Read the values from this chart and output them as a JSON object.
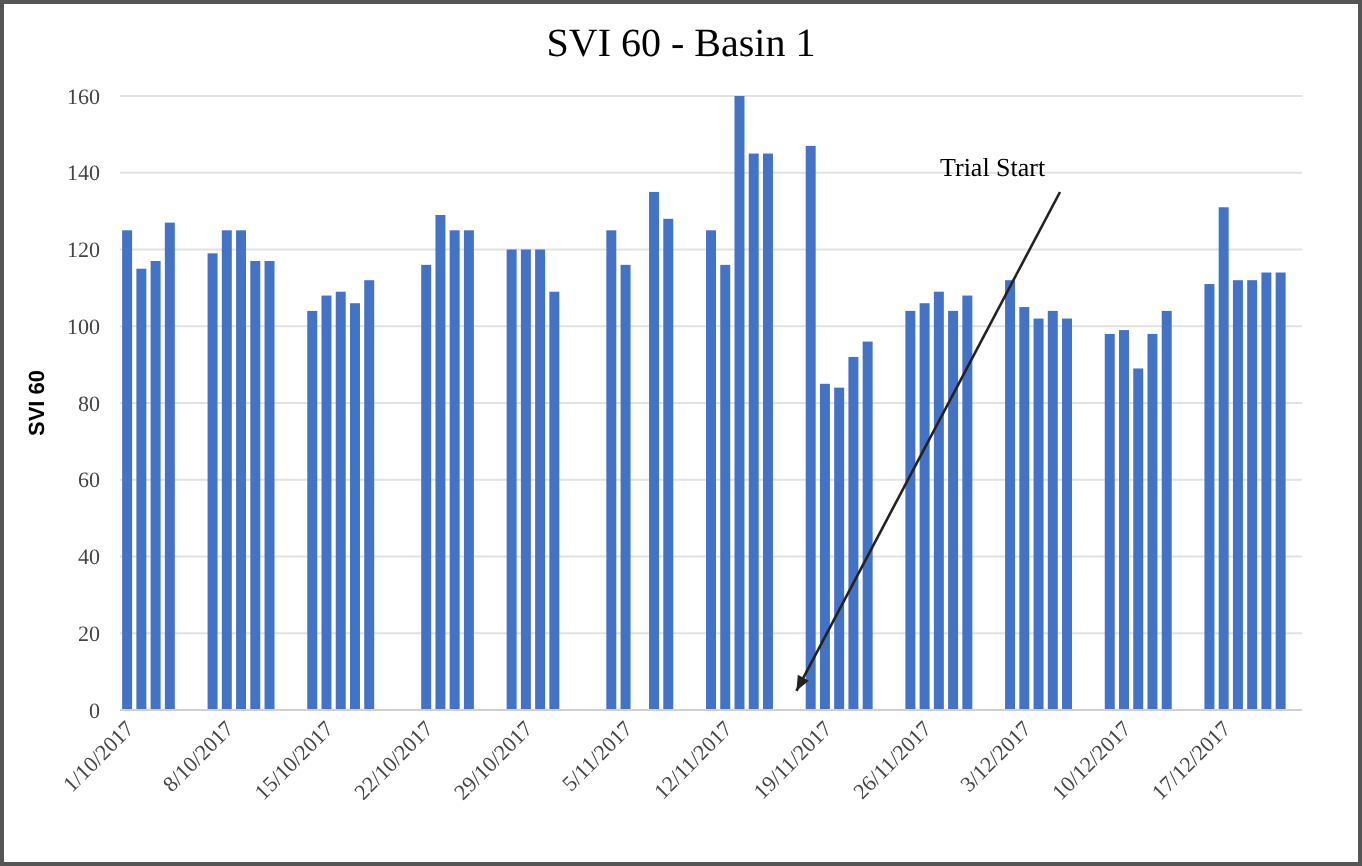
{
  "chart_data": {
    "type": "bar",
    "title": "SVI 60 - Basin 1",
    "ylabel": "SVI 60",
    "x": [
      "2017-10-01",
      "2017-10-02",
      "2017-10-03",
      "2017-10-04",
      "2017-10-07",
      "2017-10-08",
      "2017-10-09",
      "2017-10-10",
      "2017-10-11",
      "2017-10-14",
      "2017-10-15",
      "2017-10-16",
      "2017-10-17",
      "2017-10-18",
      "2017-10-22",
      "2017-10-23",
      "2017-10-24",
      "2017-10-25",
      "2017-10-28",
      "2017-10-29",
      "2017-10-30",
      "2017-10-31",
      "2017-11-04",
      "2017-11-05",
      "2017-11-07",
      "2017-11-08",
      "2017-11-11",
      "2017-11-12",
      "2017-11-13",
      "2017-11-14",
      "2017-11-15",
      "2017-11-18",
      "2017-11-19",
      "2017-11-20",
      "2017-11-21",
      "2017-11-22",
      "2017-11-25",
      "2017-11-26",
      "2017-11-27",
      "2017-11-28",
      "2017-11-29",
      "2017-12-02",
      "2017-12-03",
      "2017-12-04",
      "2017-12-05",
      "2017-12-06",
      "2017-12-09",
      "2017-12-10",
      "2017-12-11",
      "2017-12-12",
      "2017-12-13",
      "2017-12-16",
      "2017-12-17",
      "2017-12-18",
      "2017-12-19",
      "2017-12-20",
      "2017-12-21"
    ],
    "values": [
      125,
      115,
      117,
      127,
      119,
      125,
      125,
      117,
      117,
      104,
      108,
      109,
      106,
      112,
      116,
      129,
      125,
      125,
      120,
      120,
      120,
      109,
      125,
      116,
      135,
      128,
      125,
      116,
      160,
      145,
      145,
      147,
      85,
      84,
      92,
      96,
      104,
      106,
      109,
      104,
      108,
      112,
      105,
      102,
      104,
      102,
      98,
      99,
      89,
      98,
      104,
      111,
      131,
      112,
      112,
      114,
      114
    ],
    "color": "#4472c4",
    "xlim": [
      "2017-09-30T12:00",
      "2017-12-22T12:00"
    ],
    "xticks": [
      {
        "value": "2017-10-01",
        "label": "1/10/2017"
      },
      {
        "value": "2017-10-08",
        "label": "8/10/2017"
      },
      {
        "value": "2017-10-15",
        "label": "15/10/2017"
      },
      {
        "value": "2017-10-22",
        "label": "22/10/2017"
      },
      {
        "value": "2017-10-29",
        "label": "29/10/2017"
      },
      {
        "value": "2017-11-05",
        "label": "5/11/2017"
      },
      {
        "value": "2017-11-12",
        "label": "12/11/2017"
      },
      {
        "value": "2017-11-19",
        "label": "19/11/2017"
      },
      {
        "value": "2017-11-26",
        "label": "26/11/2017"
      },
      {
        "value": "2017-12-03",
        "label": "3/12/2017"
      },
      {
        "value": "2017-12-10",
        "label": "10/12/2017"
      },
      {
        "value": "2017-12-17",
        "label": "17/12/2017"
      }
    ],
    "ylim": [
      0,
      160
    ],
    "yticks": [
      0,
      20,
      40,
      60,
      80,
      100,
      120,
      140,
      160
    ],
    "grid": "y",
    "annotations": [
      {
        "text": "Trial Start",
        "x": "2017-11-17",
        "y": 5
      }
    ]
  }
}
